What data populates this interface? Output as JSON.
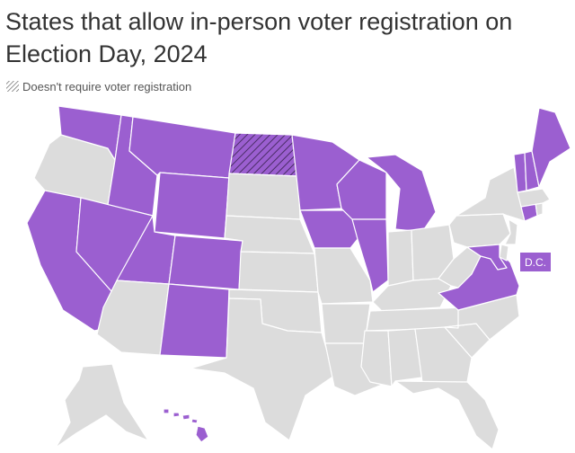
{
  "title": "States that allow in-person voter registration on Election Day, 2024",
  "legend": {
    "label": "Doesn't require voter registration"
  },
  "dc_label": "D.C.",
  "colors": {
    "allow": "#9b5fd0",
    "not_allowed": "#dcdcdc",
    "hatch_line": "#4a2d66",
    "border": "#ffffff",
    "text": "#333333"
  },
  "states": [
    {
      "id": "WA",
      "status": "allow"
    },
    {
      "id": "OR",
      "status": "not_allowed"
    },
    {
      "id": "CA",
      "status": "allow"
    },
    {
      "id": "ID",
      "status": "allow"
    },
    {
      "id": "NV",
      "status": "allow"
    },
    {
      "id": "MT",
      "status": "allow"
    },
    {
      "id": "WY",
      "status": "allow"
    },
    {
      "id": "UT",
      "status": "allow"
    },
    {
      "id": "CO",
      "status": "allow"
    },
    {
      "id": "AZ",
      "status": "not_allowed"
    },
    {
      "id": "NM",
      "status": "allow"
    },
    {
      "id": "ND",
      "status": "no_registration"
    },
    {
      "id": "SD",
      "status": "not_allowed"
    },
    {
      "id": "NE",
      "status": "not_allowed"
    },
    {
      "id": "KS",
      "status": "not_allowed"
    },
    {
      "id": "OK",
      "status": "not_allowed"
    },
    {
      "id": "TX",
      "status": "not_allowed"
    },
    {
      "id": "MN",
      "status": "allow"
    },
    {
      "id": "IA",
      "status": "allow"
    },
    {
      "id": "MO",
      "status": "not_allowed"
    },
    {
      "id": "AR",
      "status": "not_allowed"
    },
    {
      "id": "LA",
      "status": "not_allowed"
    },
    {
      "id": "WI",
      "status": "allow"
    },
    {
      "id": "IL",
      "status": "allow"
    },
    {
      "id": "MI",
      "status": "allow"
    },
    {
      "id": "IN",
      "status": "not_allowed"
    },
    {
      "id": "OH",
      "status": "not_allowed"
    },
    {
      "id": "KY",
      "status": "not_allowed"
    },
    {
      "id": "TN",
      "status": "not_allowed"
    },
    {
      "id": "MS",
      "status": "not_allowed"
    },
    {
      "id": "AL",
      "status": "not_allowed"
    },
    {
      "id": "GA",
      "status": "not_allowed"
    },
    {
      "id": "FL",
      "status": "not_allowed"
    },
    {
      "id": "SC",
      "status": "not_allowed"
    },
    {
      "id": "NC",
      "status": "not_allowed"
    },
    {
      "id": "VA",
      "status": "allow"
    },
    {
      "id": "WV",
      "status": "not_allowed"
    },
    {
      "id": "PA",
      "status": "not_allowed"
    },
    {
      "id": "NY",
      "status": "not_allowed"
    },
    {
      "id": "NJ",
      "status": "not_allowed"
    },
    {
      "id": "DE",
      "status": "not_allowed"
    },
    {
      "id": "MD",
      "status": "allow"
    },
    {
      "id": "CT",
      "status": "allow"
    },
    {
      "id": "RI",
      "status": "not_allowed"
    },
    {
      "id": "MA",
      "status": "not_allowed"
    },
    {
      "id": "VT",
      "status": "allow"
    },
    {
      "id": "NH",
      "status": "allow"
    },
    {
      "id": "ME",
      "status": "allow"
    },
    {
      "id": "AK",
      "status": "not_allowed"
    },
    {
      "id": "HI",
      "status": "allow"
    },
    {
      "id": "DC",
      "status": "allow"
    }
  ]
}
